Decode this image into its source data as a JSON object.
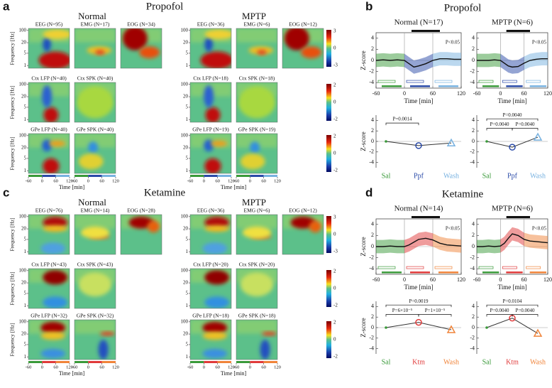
{
  "heatmaps": [
    {
      "letter": "a",
      "drug": "Propofol",
      "groups": [
        {
          "name": "Normal",
          "cells": [
            [
              "EEG (N=95)",
              "EMG (N=17)",
              "EOG (N=34)"
            ],
            [
              "Ctx LFP (N=40)",
              "Ctx SPK (N=40)"
            ],
            [
              "GPe LFP (N=40)",
              "GPe SPK (N=40)"
            ]
          ]
        },
        {
          "name": "MPTP",
          "cells": [
            [
              "EEG (N=36)",
              "EMG (N=6)",
              "EOG (N=12)"
            ],
            [
              "Ctx LFP (N=18)",
              "Ctx SPK (N=18)"
            ],
            [
              "GPe LFP (N=19)",
              "GPe SPK (N=19)"
            ]
          ]
        }
      ],
      "colorbar_ticks": [
        [
          3,
          0,
          -3
        ],
        [
          2,
          0,
          -2
        ],
        [
          2,
          0,
          -2
        ]
      ]
    },
    {
      "letter": "c",
      "drug": "Ketamine",
      "groups": [
        {
          "name": "Normal",
          "cells": [
            [
              "EEG (N=76)",
              "EMG (N=14)",
              "EOG (N=28)"
            ],
            [
              "Ctx LFP (N=43)",
              "Ctx SPK (N=43)"
            ],
            [
              "GPe LFP (N=32)",
              "GPe SPK (N=32)"
            ]
          ]
        },
        {
          "name": "MPTP",
          "cells": [
            [
              "EEG (N=36)",
              "EMG (N=6)",
              "EOG (N=12)"
            ],
            [
              "Ctx LFP (N=20)",
              "Ctx SPK (N=20)"
            ],
            [
              "GPe LFP (N=18)",
              "GPe SPK (N=18)"
            ]
          ]
        }
      ],
      "colorbar_ticks": [
        [
          3,
          0,
          -3
        ],
        [
          2,
          0,
          -2
        ],
        [
          2,
          0,
          -2
        ]
      ]
    }
  ],
  "heatmap_axes": {
    "freq_ticks": [
      100,
      20,
      5,
      1
    ],
    "ylabel": "Frequency [Hz]",
    "time_ticks": [
      -60,
      0,
      60,
      120
    ],
    "xlabel": "Time [min]"
  },
  "traces": [
    {
      "letter": "b",
      "drug": "Propofol",
      "categories": [
        "Sal",
        "Ppf",
        "Wash"
      ],
      "colors": [
        "#3a9a3a",
        "#2a4aa8",
        "#78b2e0"
      ],
      "plots": [
        {
          "title": "Normal (N=17)",
          "sig": "P<0.05",
          "values": [
            0,
            0.1,
            0,
            0.1,
            0,
            -0.6,
            -1.2,
            -1,
            -0.6,
            0,
            0.3,
            0.3,
            0.2,
            0.2
          ],
          "means": [
            0,
            -0.8,
            -0.3
          ],
          "pvalues": [
            "P=0.0014"
          ]
        },
        {
          "title": "MPTP (N=6)",
          "sig": "P<0.05",
          "values": [
            0,
            0,
            0,
            0.1,
            0,
            -0.5,
            -1,
            -1.2,
            -1.1,
            -0.5,
            0,
            0.2,
            0.3,
            0.3
          ],
          "means": [
            0,
            -1.1,
            0.8
          ],
          "pvalues": [
            "P=0.0040",
            "P=0.0040",
            "P=0.0040"
          ]
        }
      ]
    },
    {
      "letter": "d",
      "drug": "Ketamine",
      "categories": [
        "Sal",
        "Ktm",
        "Wash"
      ],
      "colors": [
        "#3a9a3a",
        "#e03a3a",
        "#f0843a"
      ],
      "plots": [
        {
          "title": "Normal (N=14)",
          "sig": "P<0.05",
          "values": [
            0,
            0,
            0.1,
            0,
            0,
            0.3,
            0.8,
            1.3,
            1.5,
            1.2,
            0.6,
            0.3,
            0.2,
            0.1
          ],
          "means": [
            0,
            1.0,
            -0.4
          ],
          "pvalues": [
            "P=0.0019",
            "P=6×10⁻⁵",
            "P=1×10⁻⁵"
          ]
        },
        {
          "title": "MPTP (N=6)",
          "sig": "P<0.05",
          "values": [
            0,
            0,
            0.1,
            0,
            0.1,
            0.6,
            1.5,
            2.3,
            2.0,
            1.3,
            1.0,
            0.9,
            0.8,
            0.7
          ],
          "means": [
            0,
            1.8,
            -1.1
          ],
          "pvalues": [
            "P=0.0104",
            "P=0.0040",
            "P=0.0040"
          ]
        }
      ]
    }
  ],
  "trace_axes": {
    "x": [
      -60,
      -45,
      -30,
      -15,
      0,
      10,
      20,
      30,
      45,
      60,
      75,
      90,
      105,
      120
    ],
    "xlim": [
      -60,
      120
    ],
    "xticks": [
      -60,
      0,
      60,
      120
    ],
    "ylim": [
      -5,
      5
    ],
    "yticks": [
      -4,
      -2,
      0,
      2,
      4
    ],
    "ylabel": "Z-score",
    "xlabel": "Time [min]"
  }
}
